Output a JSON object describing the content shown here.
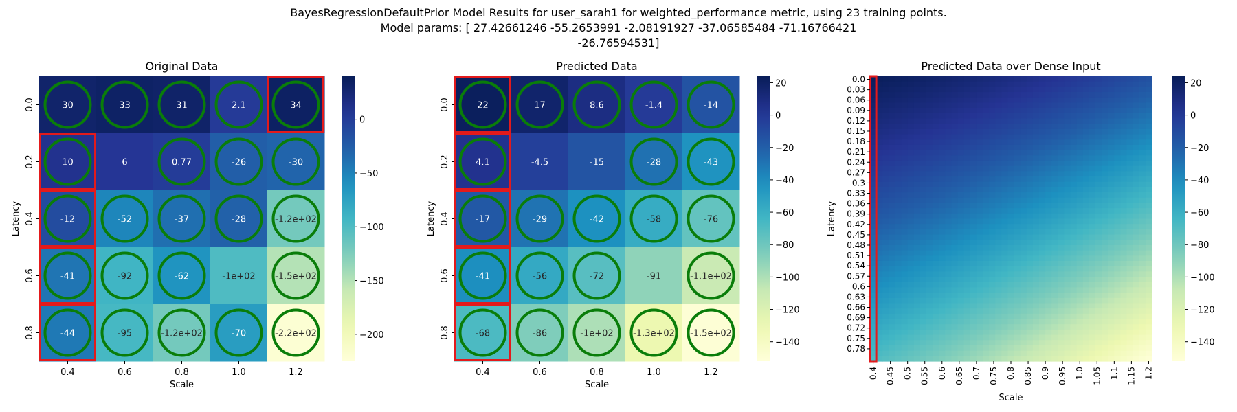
{
  "suptitle": {
    "line1": "BayesRegressionDefaultPrior Model Results for user_sarah1 for weighted_performance metric, using 23 training points.",
    "line2": "Model params: [ 27.42661246 -55.2653991   -2.08191927 -37.06585484 -71.16766421",
    "line3": "-26.76594531]"
  },
  "chart_data": [
    {
      "type": "heatmap",
      "title": "Original Data",
      "xlabel": "Scale",
      "ylabel": "Latency",
      "x_categories": [
        "0.4",
        "0.6",
        "0.8",
        "1.0",
        "1.2"
      ],
      "y_categories": [
        "0.0",
        "0.2",
        "0.4",
        "0.6",
        "0.8"
      ],
      "values": [
        [
          30,
          33,
          31,
          2.1,
          34
        ],
        [
          10,
          6,
          0.77,
          -26,
          -30
        ],
        [
          -12,
          -52,
          -37,
          -28,
          -120
        ],
        [
          -41,
          -92,
          -62,
          -100,
          -150
        ],
        [
          -44,
          -95,
          -120,
          -70,
          -220
        ]
      ],
      "cell_labels": [
        [
          "30",
          "33",
          "31",
          "2.1",
          "34"
        ],
        [
          "10",
          "6",
          "0.77",
          "-26",
          "-30"
        ],
        [
          "-12",
          "-52",
          "-37",
          "-28",
          "-1.2e+02"
        ],
        [
          "-41",
          "-92",
          "-62",
          "-1e+02",
          "-1.5e+02"
        ],
        [
          "-44",
          "-95",
          "-1.2e+02",
          "-70",
          "-2.2e+02"
        ]
      ],
      "circled": [
        [
          1,
          1,
          1,
          1,
          1
        ],
        [
          1,
          0,
          1,
          1,
          1
        ],
        [
          1,
          1,
          1,
          1,
          1
        ],
        [
          1,
          1,
          1,
          0,
          1
        ],
        [
          1,
          1,
          1,
          1,
          1
        ]
      ],
      "boxed": [
        [
          0,
          4
        ],
        [
          1,
          0
        ],
        [
          2,
          0
        ],
        [
          3,
          0
        ],
        [
          4,
          0
        ]
      ],
      "colorbar": {
        "vmin": -225,
        "vmax": 40,
        "ticks": [
          0,
          -50,
          -100,
          -150,
          -200
        ],
        "tick_labels": [
          "0",
          "−50",
          "−100",
          "−150",
          "−200"
        ]
      },
      "colormap": "YlGnBu"
    },
    {
      "type": "heatmap",
      "title": "Predicted Data",
      "xlabel": "Scale",
      "ylabel": "Latency",
      "x_categories": [
        "0.4",
        "0.6",
        "0.8",
        "1.0",
        "1.2"
      ],
      "y_categories": [
        "0.0",
        "0.2",
        "0.4",
        "0.6",
        "0.8"
      ],
      "values": [
        [
          22,
          17,
          8.6,
          -1.4,
          -14
        ],
        [
          4.1,
          -4.5,
          -15,
          -28,
          -43
        ],
        [
          -17,
          -29,
          -42,
          -58,
          -76
        ],
        [
          -41,
          -56,
          -72,
          -91,
          -110
        ],
        [
          -68,
          -86,
          -100,
          -130,
          -150
        ]
      ],
      "cell_labels": [
        [
          "22",
          "17",
          "8.6",
          "-1.4",
          "-14"
        ],
        [
          "4.1",
          "-4.5",
          "-15",
          "-28",
          "-43"
        ],
        [
          "-17",
          "-29",
          "-42",
          "-58",
          "-76"
        ],
        [
          "-41",
          "-56",
          "-72",
          "-91",
          "-1.1e+02"
        ],
        [
          "-68",
          "-86",
          "-1e+02",
          "-1.3e+02",
          "-1.5e+02"
        ]
      ],
      "circled": [
        [
          1,
          1,
          1,
          1,
          1
        ],
        [
          1,
          0,
          0,
          1,
          1
        ],
        [
          1,
          1,
          1,
          1,
          1
        ],
        [
          1,
          1,
          1,
          0,
          1
        ],
        [
          1,
          1,
          1,
          1,
          1
        ]
      ],
      "boxed": [
        [
          0,
          0
        ],
        [
          1,
          0
        ],
        [
          2,
          0
        ],
        [
          3,
          0
        ],
        [
          4,
          0
        ]
      ],
      "colorbar": {
        "vmin": -152,
        "vmax": 24,
        "ticks": [
          20,
          0,
          -20,
          -40,
          -60,
          -80,
          -100,
          -120,
          -140
        ],
        "tick_labels": [
          "20",
          "0",
          "−20",
          "−40",
          "−60",
          "−80",
          "−100",
          "−120",
          "−140"
        ]
      },
      "colormap": "YlGnBu"
    },
    {
      "type": "heatmap",
      "title": "Predicted Data over Dense Input",
      "xlabel": "Scale",
      "ylabel": "Latency",
      "x_tick_labels": [
        "0.4",
        "0.45",
        "0.5",
        "0.55",
        "0.6",
        "0.65",
        "0.7",
        "0.75",
        "0.8",
        "0.85",
        "0.9",
        "0.95",
        "1.0",
        "1.05",
        "1.1",
        "1.15",
        "1.2"
      ],
      "y_tick_labels": [
        "0.0",
        "0.03",
        "0.06",
        "0.09",
        "0.12",
        "0.15",
        "0.18",
        "0.21",
        "0.24",
        "0.27",
        "0.3",
        "0.33",
        "0.36",
        "0.39",
        "0.42",
        "0.45",
        "0.48",
        "0.51",
        "0.54",
        "0.57",
        "0.6",
        "0.63",
        "0.66",
        "0.69",
        "0.72",
        "0.75",
        "0.78"
      ],
      "x_range": [
        0.4,
        1.2
      ],
      "y_range": [
        0.0,
        0.8
      ],
      "model_params": [
        27.42661246,
        -55.2653991,
        -2.08191927,
        -37.06585484,
        -71.16766421,
        -26.76594531
      ],
      "highlight_column": "0.4",
      "colorbar": {
        "vmin": -152,
        "vmax": 24,
        "ticks": [
          20,
          0,
          -20,
          -40,
          -60,
          -80,
          -100,
          -120,
          -140
        ],
        "tick_labels": [
          "20",
          "0",
          "−20",
          "−40",
          "−60",
          "−80",
          "−100",
          "−120",
          "−140"
        ]
      },
      "colormap": "YlGnBu"
    }
  ]
}
